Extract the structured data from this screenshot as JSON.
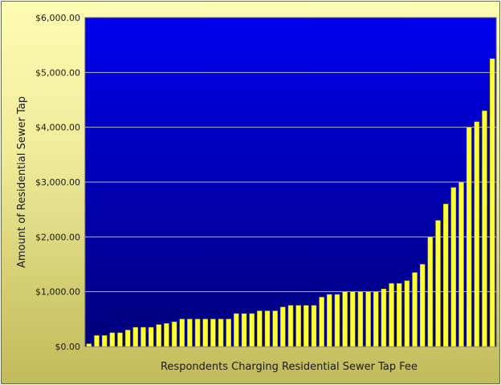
{
  "chart_data": {
    "type": "bar",
    "title": "",
    "xlabel": "Respondents Charging Residential Sewer Tap Fee",
    "ylabel": "Amount of Residential Sewer Tap",
    "ylim": [
      0,
      6000
    ],
    "yticks": [
      "$0.00",
      "$1,000.00",
      "$2,000.00",
      "$3,000.00",
      "$4,000.00",
      "$5,000.00",
      "$6,000.00"
    ],
    "grid": true,
    "legend": "none",
    "values": [
      50,
      200,
      200,
      250,
      250,
      300,
      350,
      350,
      350,
      400,
      420,
      450,
      500,
      500,
      500,
      500,
      500,
      500,
      500,
      600,
      600,
      600,
      650,
      650,
      650,
      720,
      750,
      750,
      750,
      750,
      900,
      950,
      950,
      1000,
      1000,
      1000,
      1000,
      1000,
      1050,
      1150,
      1150,
      1200,
      1350,
      1500,
      2000,
      2300,
      2600,
      2900,
      3000,
      4000,
      4100,
      4300,
      5250
    ],
    "colors": {
      "plot_top": "#0000ee",
      "plot_bottom": "#00007a",
      "bar": "#ffff33",
      "bar_edge": "#a8a800",
      "grid": "#b8b8c8"
    }
  }
}
